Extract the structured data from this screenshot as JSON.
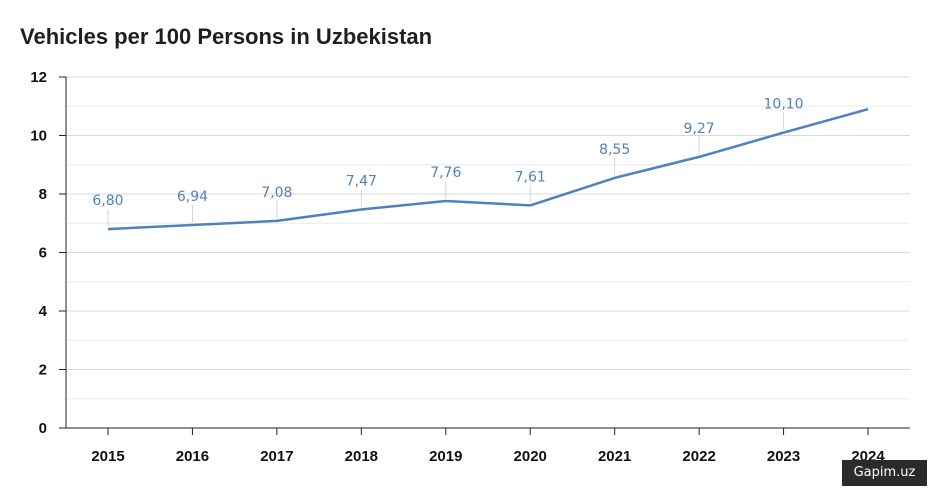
{
  "chart_data": {
    "type": "line",
    "title": "Vehicles per 100 Persons in Uzbekistan",
    "xlabel": "",
    "ylabel": "",
    "categories": [
      "2015",
      "2016",
      "2017",
      "2018",
      "2019",
      "2020",
      "2021",
      "2022",
      "2023",
      "2024"
    ],
    "series": [
      {
        "values": [
          6.8,
          6.94,
          7.08,
          7.47,
          7.76,
          7.61,
          8.55,
          9.27,
          10.1,
          10.9
        ],
        "labels": [
          "6,80",
          "6,94",
          "7,08",
          "7,47",
          "7,76",
          "7,61",
          "8,55",
          "9,27",
          "10,10",
          ""
        ]
      }
    ],
    "ylim": [
      0,
      12
    ],
    "yticks": [
      "0",
      "2",
      "4",
      "6",
      "8",
      "10",
      "12"
    ],
    "grid": true,
    "legend": "none",
    "colors": {
      "line": "#4f81bd",
      "label": "#4f81bd",
      "grid": "#d9d9d9",
      "axis": "#222222"
    }
  },
  "watermark": "Gapim.uz"
}
